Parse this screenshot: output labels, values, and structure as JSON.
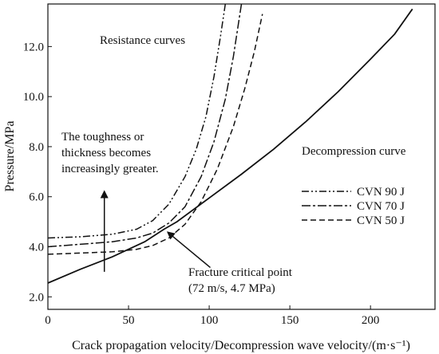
{
  "chart_data": {
    "type": "line",
    "xlabel": "Crack propagation velocity/Decompression wave velocity/(m·s⁻¹)",
    "ylabel": "Pressure/MPa",
    "xlim": [
      0,
      240
    ],
    "ylim": [
      1.5,
      13.7
    ],
    "xticks": [
      "0",
      "50",
      "100",
      "150",
      "200"
    ],
    "yticks": [
      "2.0",
      "4.0",
      "6.0",
      "8.0",
      "10.0",
      "12.0"
    ],
    "grid": false,
    "legend_position": "right",
    "series": [
      {
        "name": "Decompression curve",
        "style": "solid",
        "x": [
          0,
          20,
          40,
          60,
          72,
          80,
          100,
          120,
          140,
          160,
          180,
          200,
          215,
          226
        ],
        "y": [
          2.55,
          3.1,
          3.6,
          4.2,
          4.7,
          5.0,
          5.95,
          6.9,
          7.9,
          9.0,
          10.2,
          11.5,
          12.5,
          13.5
        ]
      },
      {
        "name": "CVN 90 J",
        "style": "dashdotdot",
        "x": [
          0,
          20,
          40,
          55,
          65,
          75,
          85,
          92,
          98,
          103,
          107,
          110
        ],
        "y": [
          4.35,
          4.4,
          4.5,
          4.7,
          5.05,
          5.7,
          6.8,
          7.9,
          9.2,
          10.8,
          12.4,
          13.7
        ]
      },
      {
        "name": "CVN 70 J",
        "style": "dashdot",
        "x": [
          0,
          20,
          40,
          55,
          65,
          75,
          85,
          95,
          103,
          110,
          115,
          120
        ],
        "y": [
          4.0,
          4.1,
          4.2,
          4.35,
          4.55,
          4.95,
          5.6,
          6.8,
          8.2,
          9.9,
          11.6,
          13.7
        ]
      },
      {
        "name": "CVN 50 J",
        "style": "dashed",
        "x": [
          0,
          20,
          40,
          55,
          65,
          75,
          85,
          95,
          105,
          115,
          122,
          128,
          133
        ],
        "y": [
          3.7,
          3.75,
          3.8,
          3.9,
          4.05,
          4.35,
          4.9,
          5.8,
          7.1,
          8.8,
          10.3,
          11.8,
          13.3
        ]
      }
    ],
    "legend": [
      "CVN 90 J",
      "CVN 70 J",
      "CVN 50 J"
    ],
    "annotations": {
      "resistance": "Resistance curves",
      "decompression": "Decompression curve",
      "toughness_line1": "The toughness or",
      "toughness_line2": "thickness becomes",
      "toughness_line3": "increasingly greater.",
      "critical_line1": "Fracture critical point",
      "critical_line2": "(72 m/s, 4.7 MPa)"
    },
    "toughness_arrow": {
      "x": 35,
      "y_from": 3.0,
      "y_to": 6.2
    },
    "critical_point": {
      "x": 72,
      "y": 4.7
    }
  }
}
